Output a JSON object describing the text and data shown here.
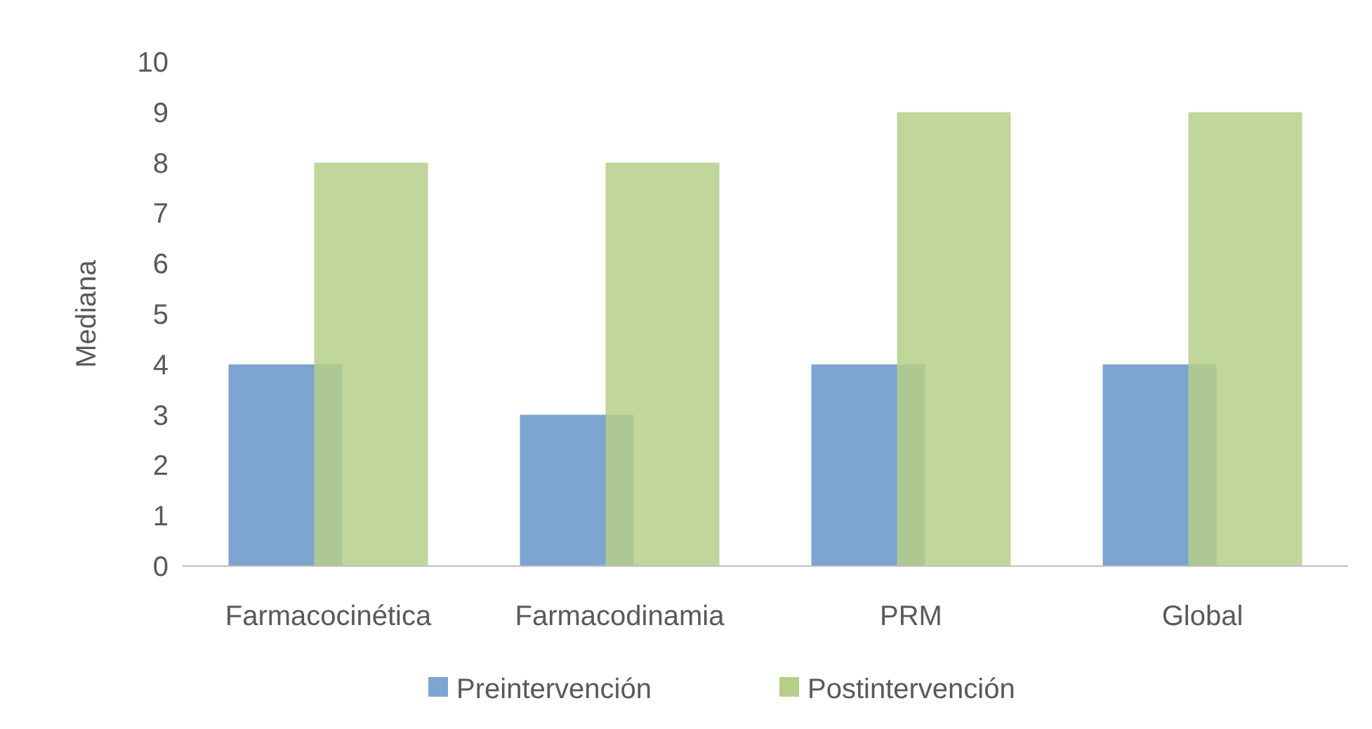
{
  "chart_data": {
    "type": "bar",
    "ylabel": "Mediana",
    "categories": [
      "Farmacocinética",
      "Farmacodinamia",
      "PRM",
      "Global"
    ],
    "series": [
      {
        "name": "Preintervención",
        "color": "#7ea4d0",
        "values": [
          4,
          3,
          4,
          4
        ]
      },
      {
        "name": "Postintervención",
        "color": "#b5cf88",
        "values": [
          8,
          8,
          9,
          9
        ]
      }
    ],
    "ylim": [
      0,
      10
    ],
    "yticks": [
      0,
      1,
      2,
      3,
      4,
      5,
      6,
      7,
      8,
      9,
      10
    ],
    "grid": false,
    "legend": "bottom"
  }
}
